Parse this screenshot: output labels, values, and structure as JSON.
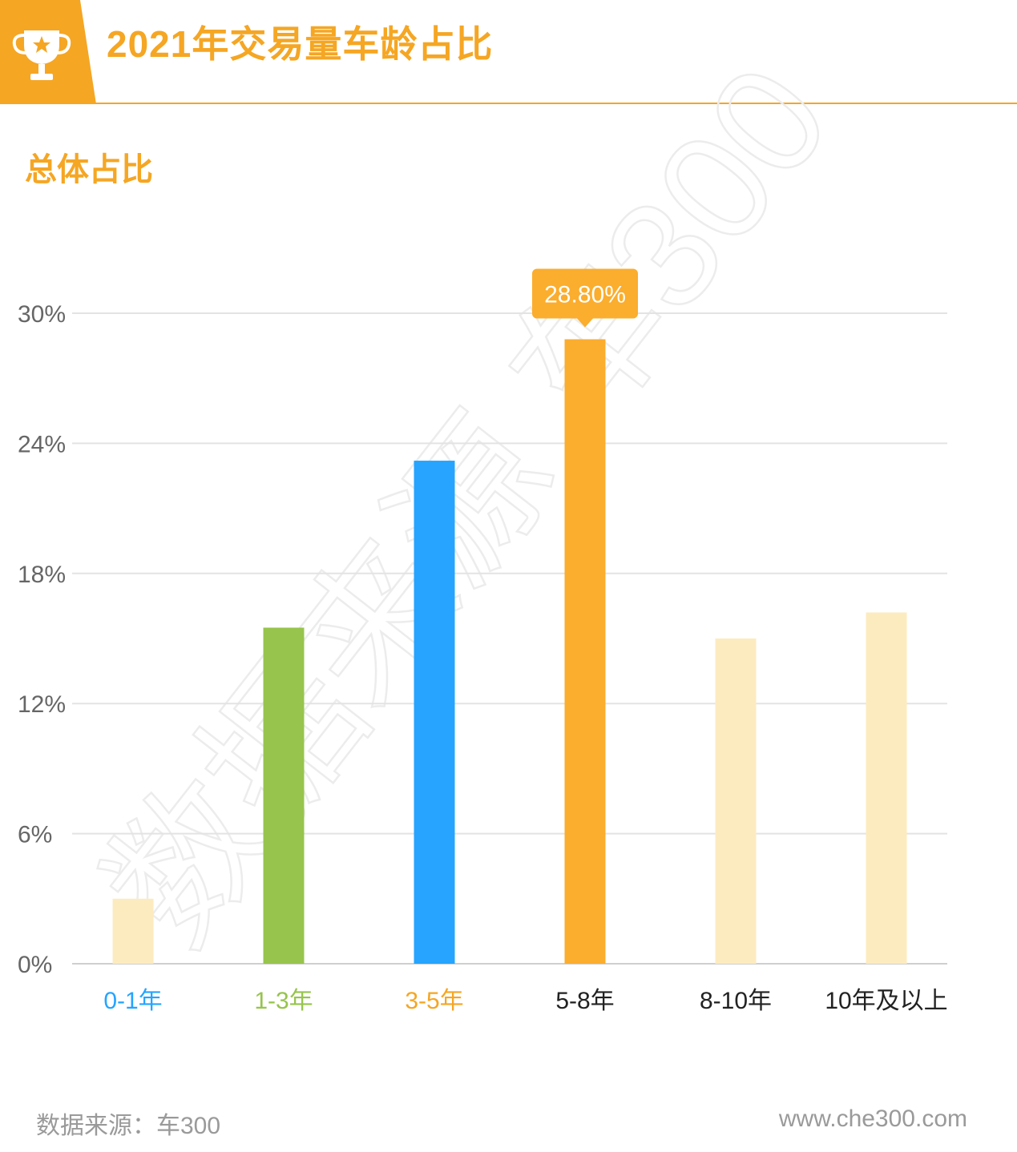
{
  "header": {
    "title": "2021年交易量车龄占比",
    "badge_icon": "trophy-star-icon",
    "accent_color": "#F5A623"
  },
  "section": {
    "title": "总体占比"
  },
  "watermark": {
    "text": "数据来源 车300"
  },
  "chart_data": {
    "type": "bar",
    "title": "",
    "xlabel": "",
    "ylabel": "",
    "categories": [
      "0-1年",
      "1-3年",
      "3-5年",
      "5-8年",
      "8-10年",
      "10年及以上"
    ],
    "values": [
      3.0,
      15.5,
      23.2,
      28.8,
      15.0,
      16.2
    ],
    "ylim": [
      0,
      30
    ],
    "yticks": [
      "0%",
      "6%",
      "12%",
      "18%",
      "24%",
      "30%"
    ],
    "ytick_values": [
      0,
      6,
      12,
      18,
      24,
      30
    ],
    "grid": true,
    "bar_colors": [
      "#FDEBC0",
      "#97C44C",
      "#26A4FF",
      "#FBAD2D",
      "#FDEBC0",
      "#FDEBC0"
    ],
    "category_label_colors": [
      "#26A4FF",
      "#97C44C",
      "#F5A623",
      "#222222",
      "#222222",
      "#222222"
    ],
    "highlight": {
      "index": 3,
      "label": "28.80%",
      "color": "#FBAD2D"
    }
  },
  "footer": {
    "source": "数据来源：车300",
    "url": "www.che300.com"
  }
}
